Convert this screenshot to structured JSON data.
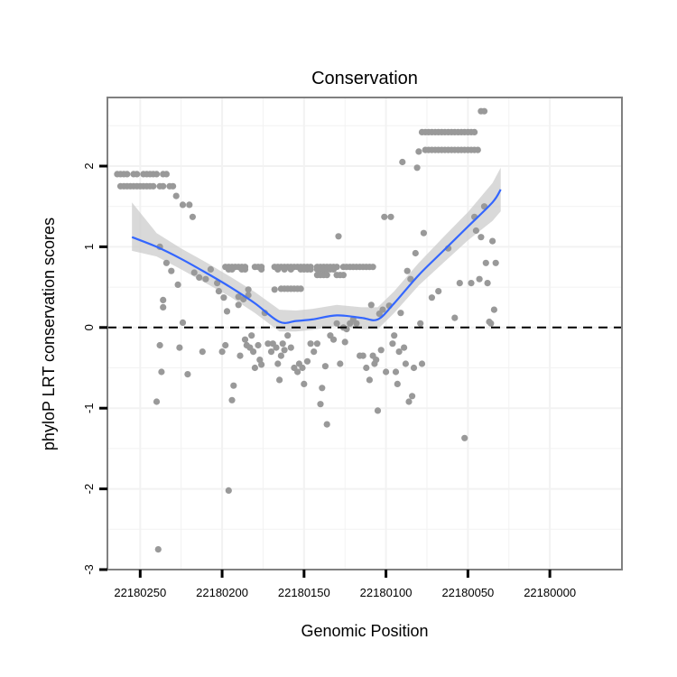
{
  "chart_data": {
    "type": "scatter",
    "title": "Conservation",
    "xlabel": "Genomic Position",
    "ylabel": "phyloP LRT conservation scores",
    "x_reversed": true,
    "xlim": [
      22180270,
      22179956
    ],
    "ylim": [
      -3,
      2.85
    ],
    "x_ticks": [
      22180250,
      22180200,
      22180150,
      22180100,
      22180050,
      22180000
    ],
    "x_tick_labels": [
      "22180250",
      "22180200",
      "22180150",
      "22180100",
      "22180050",
      "22180000"
    ],
    "y_ticks": [
      -3,
      -2,
      -1,
      0,
      1,
      2
    ],
    "y_tick_labels": [
      "-3",
      "-2",
      "-1",
      "0",
      "1",
      "2"
    ],
    "reference_line": {
      "y": 0,
      "style": "dashed"
    },
    "colors": {
      "points": "#999999",
      "smooth": "#3366ff",
      "ribbon": "#cccccc",
      "panel_border": "#808080",
      "grid": "#f2f2f2"
    },
    "series": [
      {
        "name": "scores",
        "points": [
          [
            22180239,
            -2.75
          ],
          [
            22180240,
            -0.92
          ],
          [
            22180238,
            -0.22
          ],
          [
            22180237,
            -0.55
          ],
          [
            22180236,
            0.25
          ],
          [
            22180236,
            0.34
          ],
          [
            22180238,
            1.0
          ],
          [
            22180234,
            0.8
          ],
          [
            22180231,
            0.7
          ],
          [
            22180227,
            0.53
          ],
          [
            22180226,
            -0.25
          ],
          [
            22180224,
            0.06
          ],
          [
            22180221,
            -0.58
          ],
          [
            22180217,
            0.68
          ],
          [
            22180214,
            0.62
          ],
          [
            22180212,
            -0.3
          ],
          [
            22180210,
            0.6
          ],
          [
            22180207,
            0.72
          ],
          [
            22180203,
            0.55
          ],
          [
            22180202,
            0.45
          ],
          [
            22180199,
            0.37
          ],
          [
            22180200,
            -0.3
          ],
          [
            22180198,
            -0.22
          ],
          [
            22180197,
            0.2
          ],
          [
            22180196,
            -2.02
          ],
          [
            22180194,
            -0.9
          ],
          [
            22180193,
            -0.72
          ],
          [
            22180190,
            0.28
          ],
          [
            22180190,
            0.38
          ],
          [
            22180189,
            -0.35
          ],
          [
            22180187,
            0.35
          ],
          [
            22180186,
            -0.15
          ],
          [
            22180185,
            -0.22
          ],
          [
            22180184,
            0.4
          ],
          [
            22180183,
            -0.25
          ],
          [
            22180182,
            -0.1
          ],
          [
            22180181,
            -0.3
          ],
          [
            22180180,
            -0.5
          ],
          [
            22180178,
            -0.22
          ],
          [
            22180177,
            -0.4
          ],
          [
            22180176,
            -0.46
          ],
          [
            22180174,
            0.18
          ],
          [
            22180172,
            -0.2
          ],
          [
            22180170,
            -0.3
          ],
          [
            22180169,
            -0.2
          ],
          [
            22180167,
            -0.25
          ],
          [
            22180166,
            -0.45
          ],
          [
            22180165,
            -0.65
          ],
          [
            22180164,
            -0.35
          ],
          [
            22180163,
            -0.2
          ],
          [
            22180162,
            -0.28
          ],
          [
            22180160,
            -0.1
          ],
          [
            22180158,
            -0.25
          ],
          [
            22180156,
            -0.5
          ],
          [
            22180154,
            -0.55
          ],
          [
            22180153,
            -0.45
          ],
          [
            22180151,
            -0.5
          ],
          [
            22180150,
            -0.7
          ],
          [
            22180148,
            -0.42
          ],
          [
            22180146,
            -0.2
          ],
          [
            22180144,
            -0.3
          ],
          [
            22180142,
            -0.2
          ],
          [
            22180140,
            -0.95
          ],
          [
            22180139,
            -0.75
          ],
          [
            22180137,
            -0.48
          ],
          [
            22180136,
            -1.2
          ],
          [
            22180134,
            -0.1
          ],
          [
            22180132,
            -0.15
          ],
          [
            22180130,
            0.05
          ],
          [
            22180129,
            1.13
          ],
          [
            22180128,
            -0.45
          ],
          [
            22180126,
            0.0
          ],
          [
            22180125,
            -0.18
          ],
          [
            22180124,
            -0.02
          ],
          [
            22180122,
            0.05
          ],
          [
            22180120,
            0.1
          ],
          [
            22180118,
            0.05
          ],
          [
            22180116,
            -0.35
          ],
          [
            22180114,
            -0.35
          ],
          [
            22180112,
            -0.5
          ],
          [
            22180110,
            -0.65
          ],
          [
            22180109,
            0.28
          ],
          [
            22180108,
            -0.35
          ],
          [
            22180107,
            -0.45
          ],
          [
            22180106,
            -0.4
          ],
          [
            22180105,
            -1.03
          ],
          [
            22180104,
            0.17
          ],
          [
            22180103,
            -0.28
          ],
          [
            22180102,
            0.22
          ],
          [
            22180101,
            1.37
          ],
          [
            22180100,
            -0.55
          ],
          [
            22180098,
            0.27
          ],
          [
            22180097,
            1.37
          ],
          [
            22180096,
            -0.2
          ],
          [
            22180095,
            -0.1
          ],
          [
            22180094,
            -0.55
          ],
          [
            22180093,
            -0.7
          ],
          [
            22180092,
            -0.3
          ],
          [
            22180091,
            0.18
          ],
          [
            22180090,
            2.05
          ],
          [
            22180089,
            -0.25
          ],
          [
            22180088,
            -0.45
          ],
          [
            22180087,
            0.7
          ],
          [
            22180086,
            -0.92
          ],
          [
            22180085,
            0.6
          ],
          [
            22180084,
            -0.85
          ],
          [
            22180083,
            -0.5
          ],
          [
            22180082,
            0.92
          ],
          [
            22180081,
            1.98
          ],
          [
            22180080,
            2.18
          ],
          [
            22180079,
            0.05
          ],
          [
            22180078,
            -0.45
          ],
          [
            22180077,
            1.17
          ],
          [
            22180072,
            0.37
          ],
          [
            22180068,
            0.45
          ],
          [
            22180062,
            0.98
          ],
          [
            22180058,
            0.12
          ],
          [
            22180055,
            0.55
          ],
          [
            22180052,
            -1.37
          ],
          [
            22180048,
            0.55
          ],
          [
            22180046,
            1.37
          ],
          [
            22180045,
            1.2
          ],
          [
            22180043,
            0.6
          ],
          [
            22180042,
            1.12
          ],
          [
            22180040,
            1.5
          ],
          [
            22180039,
            0.8
          ],
          [
            22180038,
            0.55
          ],
          [
            22180037,
            0.07
          ],
          [
            22180036,
            0.05
          ],
          [
            22180035,
            1.07
          ],
          [
            22180034,
            0.22
          ],
          [
            22180033,
            0.8
          ]
        ]
      },
      {
        "name": "band_high",
        "points": [
          [
            22180264,
            1.9
          ],
          [
            22180262,
            1.9
          ],
          [
            22180260,
            1.9
          ],
          [
            22180258,
            1.9
          ],
          [
            22180254,
            1.9
          ],
          [
            22180252,
            1.9
          ],
          [
            22180248,
            1.9
          ],
          [
            22180246,
            1.9
          ],
          [
            22180244,
            1.9
          ],
          [
            22180242,
            1.9
          ],
          [
            22180240,
            1.9
          ],
          [
            22180236,
            1.9
          ],
          [
            22180234,
            1.9
          ],
          [
            22180262,
            1.75
          ],
          [
            22180260,
            1.75
          ],
          [
            22180258,
            1.75
          ],
          [
            22180256,
            1.75
          ],
          [
            22180254,
            1.75
          ],
          [
            22180252,
            1.75
          ],
          [
            22180250,
            1.75
          ],
          [
            22180248,
            1.75
          ],
          [
            22180246,
            1.75
          ],
          [
            22180244,
            1.75
          ],
          [
            22180242,
            1.75
          ],
          [
            22180238,
            1.75
          ],
          [
            22180236,
            1.75
          ],
          [
            22180232,
            1.75
          ],
          [
            22180230,
            1.75
          ],
          [
            22180228,
            1.63
          ],
          [
            22180224,
            1.52
          ],
          [
            22180220,
            1.52
          ],
          [
            22180218,
            1.37
          ]
        ]
      },
      {
        "name": "band_low",
        "points": [
          [
            22180198,
            0.75
          ],
          [
            22180196,
            0.75
          ],
          [
            22180194,
            0.75
          ],
          [
            22180192,
            0.75
          ],
          [
            22180190,
            0.75
          ],
          [
            22180188,
            0.75
          ],
          [
            22180186,
            0.75
          ],
          [
            22180180,
            0.75
          ],
          [
            22180178,
            0.75
          ],
          [
            22180176,
            0.75
          ],
          [
            22180168,
            0.75
          ],
          [
            22180166,
            0.75
          ],
          [
            22180164,
            0.75
          ],
          [
            22180162,
            0.75
          ],
          [
            22180160,
            0.75
          ],
          [
            22180158,
            0.75
          ],
          [
            22180156,
            0.75
          ],
          [
            22180154,
            0.75
          ],
          [
            22180152,
            0.75
          ],
          [
            22180150,
            0.75
          ],
          [
            22180148,
            0.75
          ],
          [
            22180146,
            0.75
          ],
          [
            22180142,
            0.75
          ],
          [
            22180140,
            0.75
          ],
          [
            22180138,
            0.75
          ],
          [
            22180136,
            0.75
          ],
          [
            22180134,
            0.75
          ],
          [
            22180132,
            0.75
          ],
          [
            22180130,
            0.75
          ],
          [
            22180126,
            0.75
          ],
          [
            22180124,
            0.75
          ],
          [
            22180122,
            0.75
          ],
          [
            22180120,
            0.75
          ],
          [
            22180118,
            0.75
          ],
          [
            22180116,
            0.75
          ],
          [
            22180114,
            0.75
          ],
          [
            22180112,
            0.75
          ],
          [
            22180110,
            0.75
          ],
          [
            22180108,
            0.75
          ],
          [
            22180196,
            0.72
          ],
          [
            22180194,
            0.72
          ],
          [
            22180188,
            0.72
          ],
          [
            22180186,
            0.72
          ],
          [
            22180176,
            0.72
          ],
          [
            22180166,
            0.72
          ],
          [
            22180162,
            0.72
          ],
          [
            22180158,
            0.72
          ],
          [
            22180152,
            0.72
          ],
          [
            22180150,
            0.72
          ],
          [
            22180148,
            0.72
          ],
          [
            22180146,
            0.72
          ],
          [
            22180142,
            0.72
          ],
          [
            22180140,
            0.72
          ],
          [
            22180138,
            0.72
          ],
          [
            22180136,
            0.72
          ],
          [
            22180134,
            0.72
          ],
          [
            22180132,
            0.72
          ],
          [
            22180184,
            0.47
          ],
          [
            22180168,
            0.47
          ],
          [
            22180164,
            0.48
          ],
          [
            22180162,
            0.48
          ],
          [
            22180160,
            0.48
          ],
          [
            22180158,
            0.48
          ],
          [
            22180156,
            0.48
          ],
          [
            22180154,
            0.48
          ],
          [
            22180152,
            0.48
          ],
          [
            22180142,
            0.65
          ],
          [
            22180140,
            0.65
          ],
          [
            22180138,
            0.65
          ],
          [
            22180136,
            0.65
          ],
          [
            22180130,
            0.65
          ],
          [
            22180128,
            0.65
          ],
          [
            22180126,
            0.65
          ]
        ]
      },
      {
        "name": "band_top",
        "points": [
          [
            22180078,
            2.42
          ],
          [
            22180076,
            2.42
          ],
          [
            22180074,
            2.42
          ],
          [
            22180072,
            2.42
          ],
          [
            22180070,
            2.42
          ],
          [
            22180068,
            2.42
          ],
          [
            22180066,
            2.42
          ],
          [
            22180064,
            2.42
          ],
          [
            22180062,
            2.42
          ],
          [
            22180060,
            2.42
          ],
          [
            22180058,
            2.42
          ],
          [
            22180056,
            2.42
          ],
          [
            22180054,
            2.42
          ],
          [
            22180052,
            2.42
          ],
          [
            22180050,
            2.42
          ],
          [
            22180048,
            2.42
          ],
          [
            22180046,
            2.42
          ],
          [
            22180076,
            2.2
          ],
          [
            22180074,
            2.2
          ],
          [
            22180072,
            2.2
          ],
          [
            22180070,
            2.2
          ],
          [
            22180068,
            2.2
          ],
          [
            22180066,
            2.2
          ],
          [
            22180064,
            2.2
          ],
          [
            22180062,
            2.2
          ],
          [
            22180060,
            2.2
          ],
          [
            22180058,
            2.2
          ],
          [
            22180056,
            2.2
          ],
          [
            22180054,
            2.2
          ],
          [
            22180052,
            2.2
          ],
          [
            22180050,
            2.2
          ],
          [
            22180048,
            2.2
          ],
          [
            22180046,
            2.2
          ],
          [
            22180044,
            2.2
          ],
          [
            22180042,
            2.68
          ],
          [
            22180040,
            2.68
          ]
        ]
      }
    ],
    "smooth": {
      "x": [
        22180255,
        22180240,
        22180225,
        22180210,
        22180195,
        22180180,
        22180165,
        22180155,
        22180145,
        22180130,
        22180115,
        22180105,
        22180095,
        22180080,
        22180065,
        22180050,
        22180035,
        22180030
      ],
      "y": [
        1.12,
        1.0,
        0.85,
        0.68,
        0.5,
        0.3,
        0.07,
        0.08,
        0.1,
        0.15,
        0.12,
        0.1,
        0.3,
        0.65,
        0.95,
        1.25,
        1.55,
        1.71
      ],
      "lower": [
        0.95,
        0.88,
        0.72,
        0.55,
        0.38,
        0.18,
        -0.05,
        -0.05,
        -0.03,
        0.02,
        -0.02,
        -0.02,
        0.18,
        0.52,
        0.8,
        1.08,
        1.32,
        1.44
      ],
      "upper": [
        1.55,
        1.17,
        0.98,
        0.81,
        0.63,
        0.44,
        0.22,
        0.21,
        0.23,
        0.28,
        0.25,
        0.25,
        0.45,
        0.8,
        1.12,
        1.43,
        1.79,
        1.98
      ]
    }
  }
}
